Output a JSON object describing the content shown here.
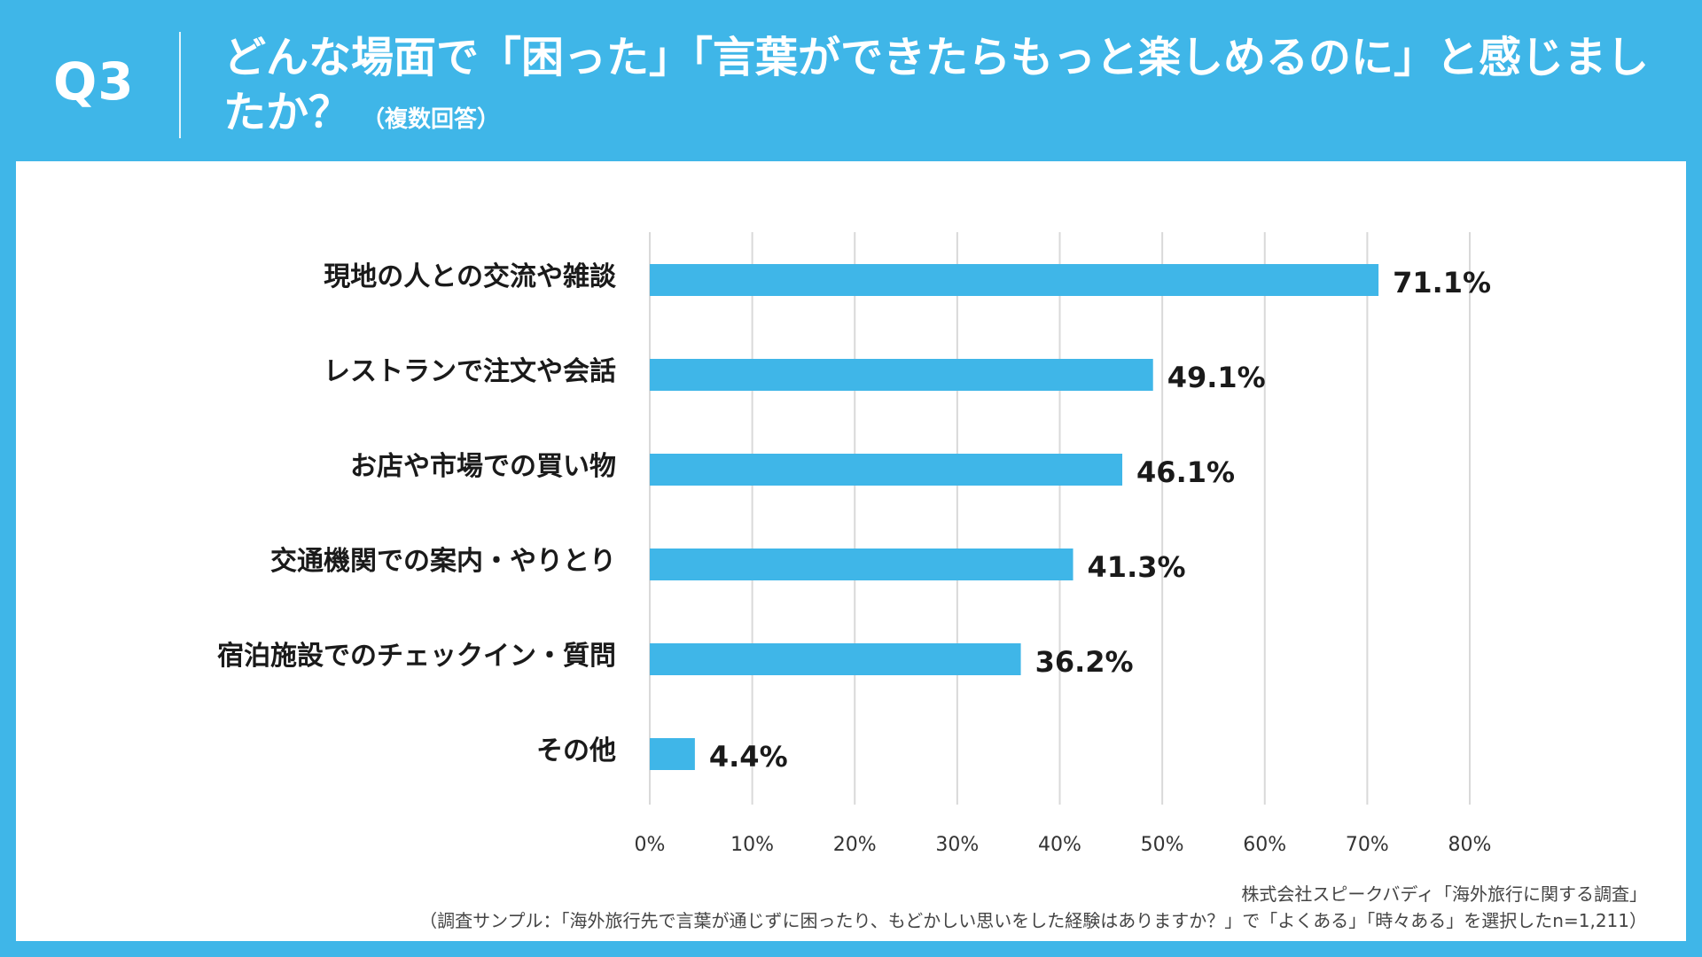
{
  "header": {
    "q_label": "Q3",
    "title": "どんな場面で「困った」「言葉ができたらもっと楽しめるのに」と感じましたか？",
    "subtitle": "（複数回答）"
  },
  "colors": {
    "background": "#3fb6e8",
    "bar": "#3fb6e8",
    "grid": "#d9d9d9",
    "text": "#1a1a1a"
  },
  "chart_data": {
    "type": "bar",
    "orientation": "horizontal",
    "categories": [
      "現地の人との交流や雑談",
      "レストランで注文や会話",
      "お店や市場での買い物",
      "交通機関での案内・やりとり",
      "宿泊施設でのチェックイン・質問",
      "その他"
    ],
    "values": [
      71.1,
      49.1,
      46.1,
      41.3,
      36.2,
      4.4
    ],
    "value_labels": [
      "71.1%",
      "49.1%",
      "46.1%",
      "41.3%",
      "36.2%",
      "4.4%"
    ],
    "xlim": [
      0,
      80
    ],
    "xticks": [
      0,
      10,
      20,
      30,
      40,
      50,
      60,
      70,
      80
    ],
    "xtick_labels": [
      "0%",
      "10%",
      "20%",
      "30%",
      "40%",
      "50%",
      "60%",
      "70%",
      "80%"
    ],
    "grid": true
  },
  "source": {
    "line1": "株式会社スピークバディ「海外旅行に関する調査」",
    "line2": "（調査サンプル：「海外旅行先で言葉が通じずに困ったり、もどかしい思いをした経験はありますか？」で「よくある」「時々ある」を選択したn=1,211）"
  }
}
